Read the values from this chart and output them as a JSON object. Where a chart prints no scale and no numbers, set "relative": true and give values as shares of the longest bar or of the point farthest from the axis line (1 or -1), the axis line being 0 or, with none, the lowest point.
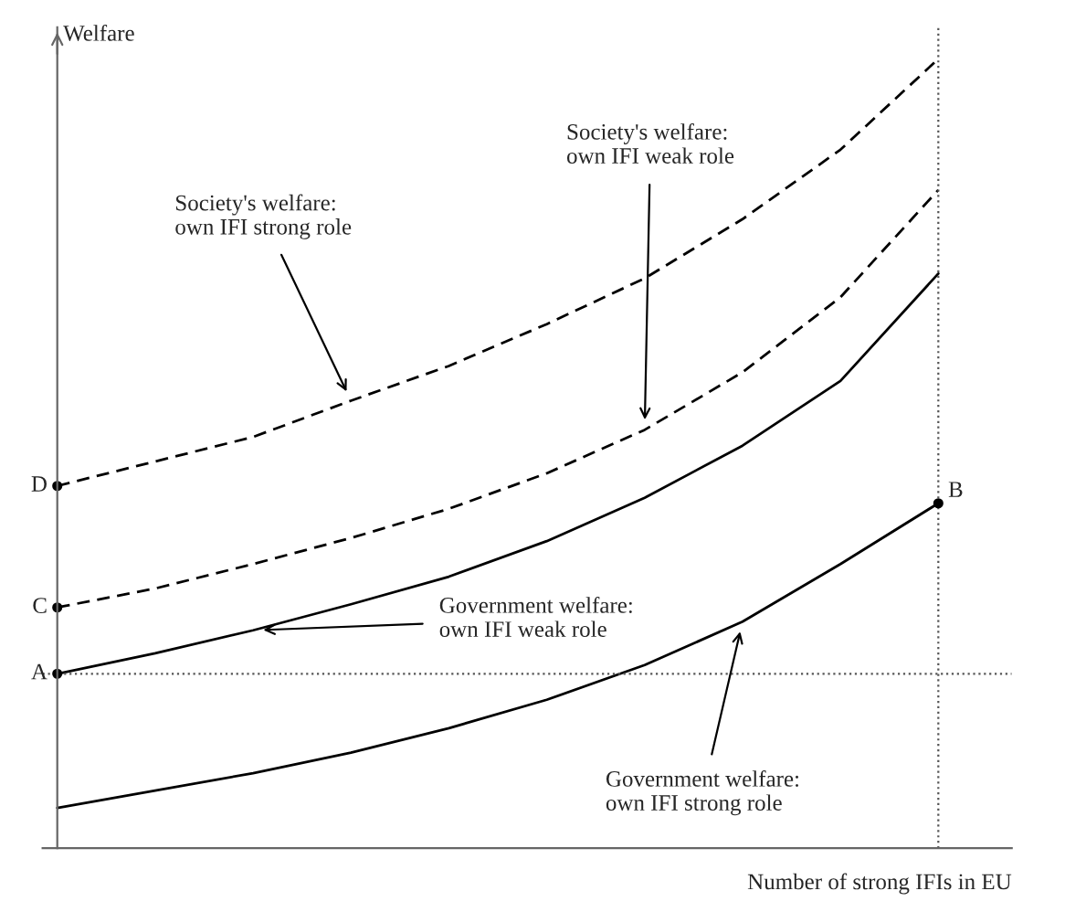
{
  "chart_data": {
    "type": "line",
    "relative": true,
    "xlabel": "Number of strong IFIs in EU",
    "ylabel": "Welfare",
    "categories": [
      null,
      null,
      null,
      null,
      null,
      null,
      null,
      null,
      null,
      null
    ],
    "series": [
      {
        "color": "#000000",
        "line_style": "dashed",
        "values": [
          0.459,
          0.49,
          0.521,
          0.567,
          0.611,
          0.664,
          0.722,
          0.797,
          0.885,
          1.0
        ]
      },
      {
        "color": "#000000",
        "line_style": "dashed",
        "values": [
          0.305,
          0.329,
          0.36,
          0.393,
          0.43,
          0.475,
          0.53,
          0.603,
          0.698,
          0.834
        ]
      },
      {
        "color": "#000000",
        "line_style": "solid",
        "values": [
          0.221,
          0.247,
          0.276,
          0.309,
          0.344,
          0.389,
          0.444,
          0.51,
          0.592,
          0.728
        ]
      },
      {
        "color": "#000000",
        "line_style": "solid",
        "values": [
          0.051,
          0.073,
          0.095,
          0.121,
          0.152,
          0.188,
          0.232,
          0.287,
          0.36,
          0.437
        ]
      }
    ],
    "ref_lines": [
      {
        "axis": "y",
        "value": 0.221,
        "line_style": "dotted",
        "color": "#555555"
      }
    ],
    "annotations": [
      "Society's welfare:\nown IFI strong role",
      "Society's welfare:\nown IFI weak role",
      "Government welfare:\nown IFI weak role",
      "Government welfare:\nown IFI strong role",
      "D",
      "C",
      "A",
      "B"
    ]
  }
}
